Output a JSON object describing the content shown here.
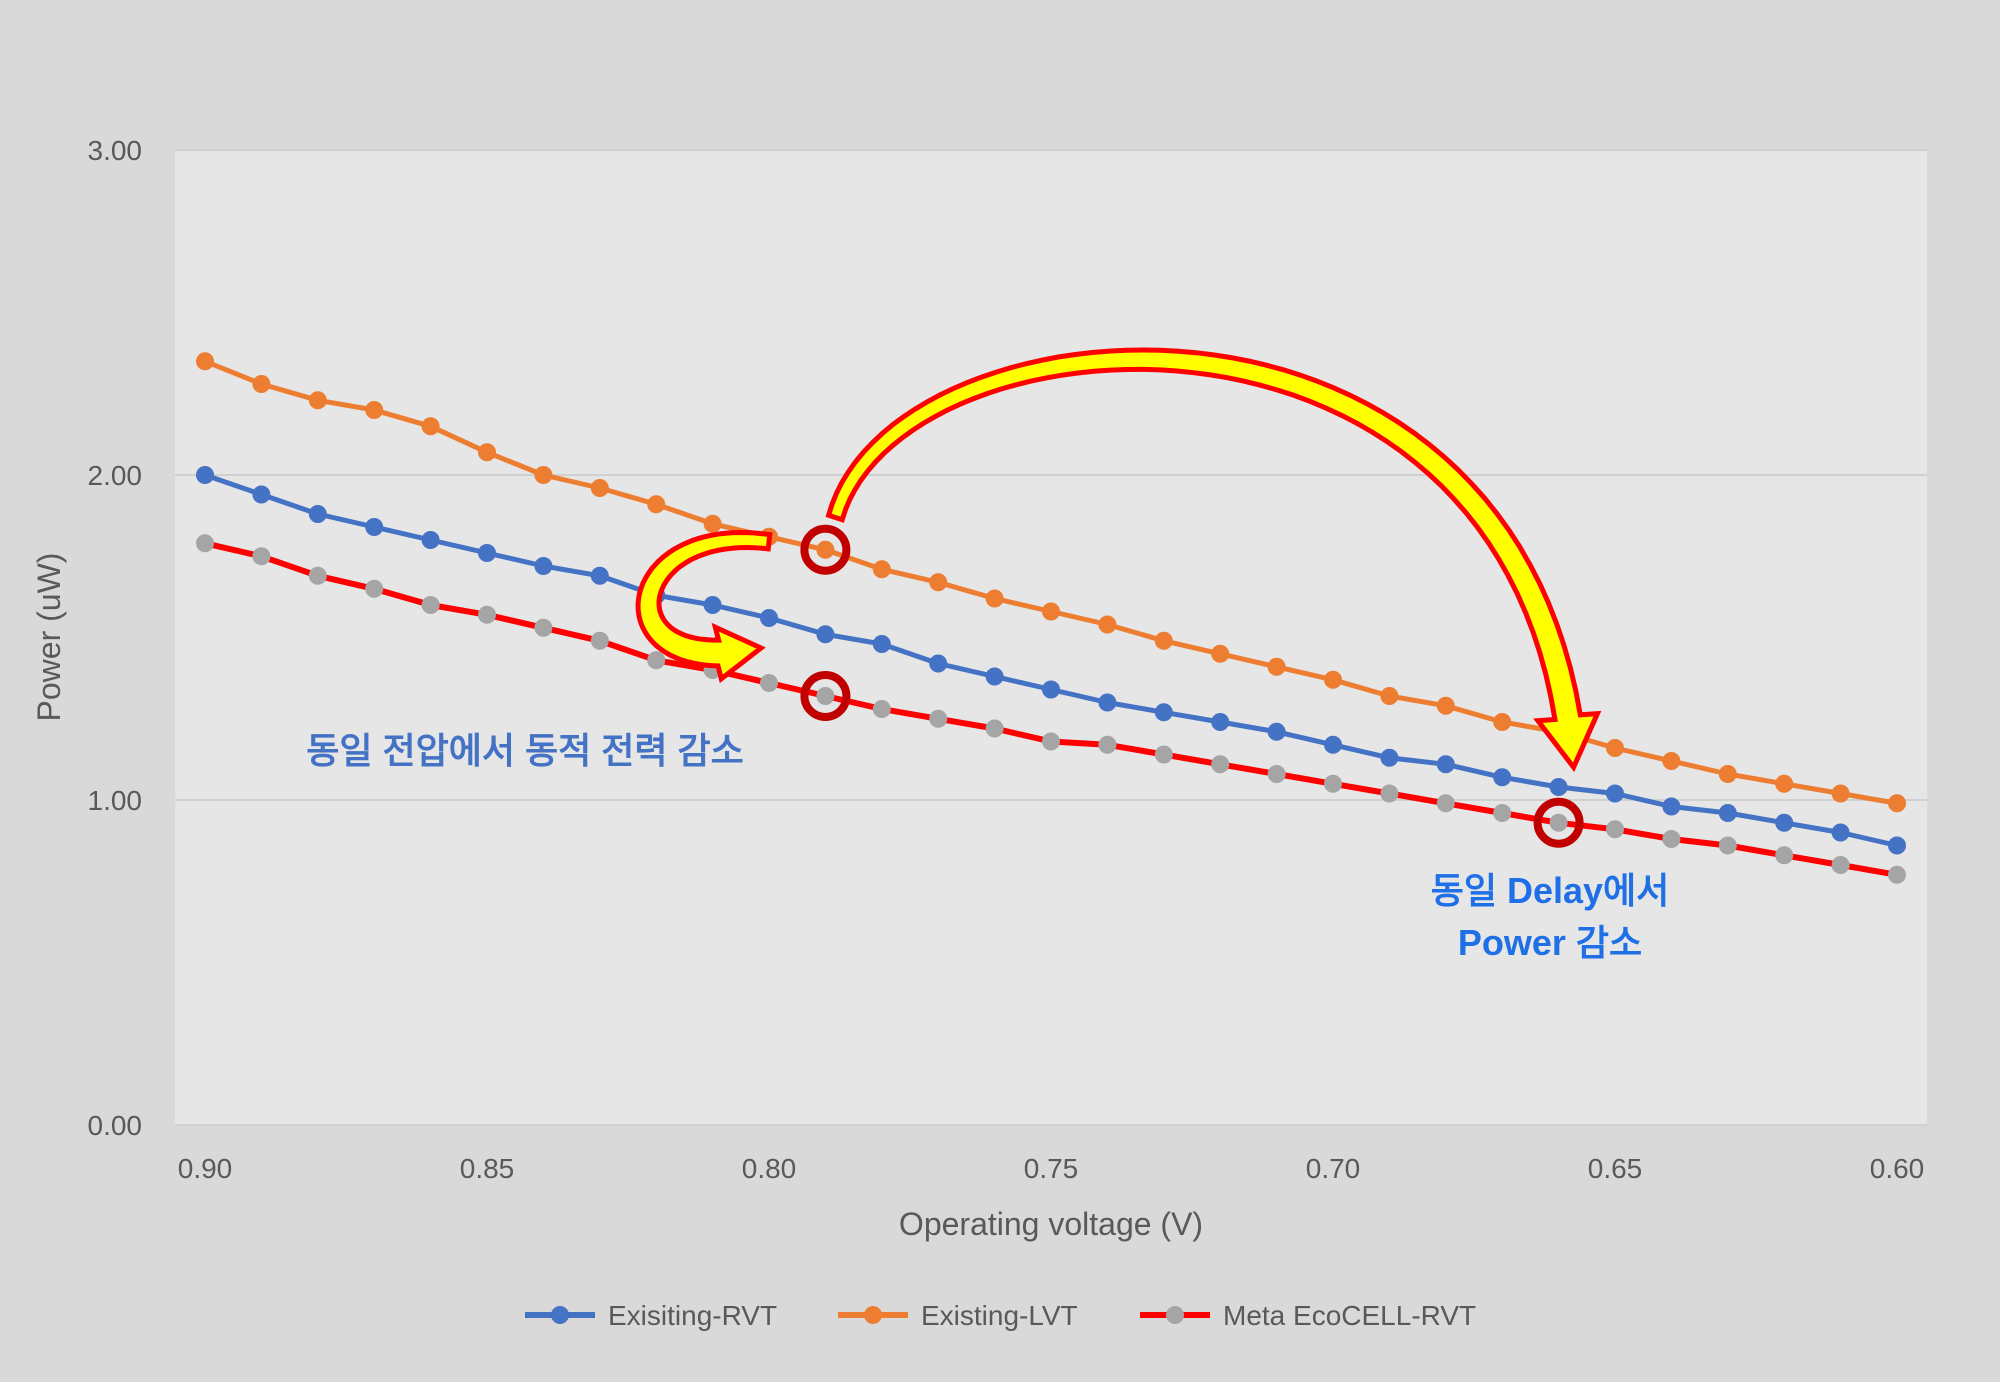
{
  "chart_data": {
    "type": "line",
    "xlabel": "Operating voltage (V)",
    "ylabel": "Power (uW)",
    "xlim": [
      0.9,
      0.6
    ],
    "ylim": [
      0.0,
      3.0
    ],
    "x_reversed": true,
    "x_ticks": [
      "0.90",
      "0.85",
      "0.80",
      "0.75",
      "0.70",
      "0.65",
      "0.60"
    ],
    "y_ticks": [
      "0.00",
      "1.00",
      "2.00",
      "3.00"
    ],
    "grid": "horizontal",
    "legend_position": "bottom",
    "x": [
      0.9,
      0.89,
      0.88,
      0.87,
      0.86,
      0.85,
      0.84,
      0.83,
      0.82,
      0.81,
      0.8,
      0.79,
      0.78,
      0.77,
      0.76,
      0.75,
      0.74,
      0.73,
      0.72,
      0.71,
      0.7,
      0.69,
      0.68,
      0.67,
      0.66,
      0.65,
      0.64,
      0.63,
      0.62,
      0.61,
      0.6
    ],
    "series": [
      {
        "name": "Exisiting-RVT",
        "line_color": "#4472c4",
        "marker_color": "#4472c4",
        "values": [
          2.0,
          1.94,
          1.88,
          1.84,
          1.8,
          1.76,
          1.72,
          1.69,
          1.63,
          1.6,
          1.56,
          1.51,
          1.48,
          1.42,
          1.38,
          1.34,
          1.3,
          1.27,
          1.24,
          1.21,
          1.17,
          1.13,
          1.11,
          1.07,
          1.04,
          1.02,
          0.98,
          0.96,
          0.93,
          0.9,
          0.86
        ]
      },
      {
        "name": "Existing-LVT",
        "line_color": "#ed7d31",
        "marker_color": "#ed7d31",
        "values": [
          2.35,
          2.28,
          2.23,
          2.2,
          2.15,
          2.07,
          2.0,
          1.96,
          1.91,
          1.85,
          1.81,
          1.77,
          1.71,
          1.67,
          1.62,
          1.58,
          1.54,
          1.49,
          1.45,
          1.41,
          1.37,
          1.32,
          1.29,
          1.24,
          1.21,
          1.16,
          1.12,
          1.08,
          1.05,
          1.02,
          0.99
        ]
      },
      {
        "name": "Meta EcoCELL-RVT",
        "line_color": "#ff0000",
        "marker_color": "#a5a5a5",
        "values": [
          1.79,
          1.75,
          1.69,
          1.65,
          1.6,
          1.57,
          1.53,
          1.49,
          1.43,
          1.4,
          1.36,
          1.32,
          1.28,
          1.25,
          1.22,
          1.18,
          1.17,
          1.14,
          1.11,
          1.08,
          1.05,
          1.02,
          0.99,
          0.96,
          0.93,
          0.91,
          0.88,
          0.86,
          0.83,
          0.8,
          0.77
        ]
      }
    ],
    "annotations": [
      {
        "text": "동일 전압에서 동적 전력 감소",
        "color": "#4472c4"
      },
      {
        "lines": [
          "동일 Delay에서",
          "Power 감소"
        ],
        "color": "#1f6fe6"
      }
    ],
    "highlight_circles": [
      {
        "x": 0.79,
        "y": 1.77
      },
      {
        "x": 0.79,
        "y": 1.32
      },
      {
        "x": 0.66,
        "y": 0.93
      }
    ],
    "arrows": [
      {
        "from": {
          "x": 0.8,
          "y": 1.81
        },
        "to": {
          "x": 0.8,
          "y": 1.36
        }
      },
      {
        "from": {
          "x": 0.79,
          "y": 1.9
        },
        "to": {
          "x": 0.66,
          "y": 1.07
        }
      }
    ]
  }
}
